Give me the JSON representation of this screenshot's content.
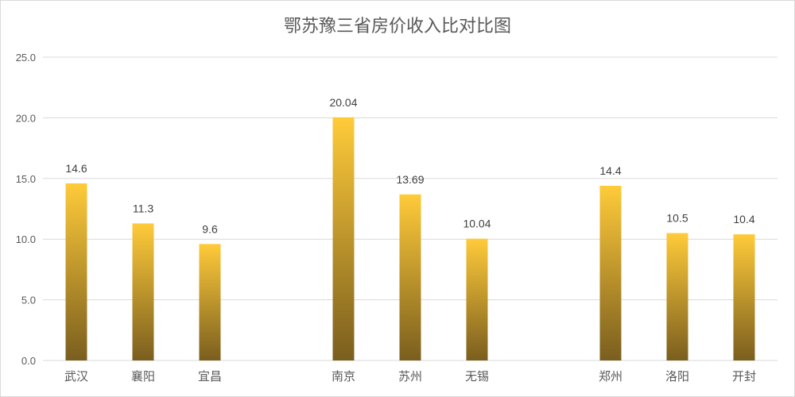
{
  "chart_data": {
    "type": "bar",
    "title": "鄂苏豫三省房价收入比对比图",
    "categories": [
      "武汉",
      "襄阳",
      "宜昌",
      "",
      "南京",
      "苏州",
      "无锡",
      "",
      "郑州",
      "洛阳",
      "开封"
    ],
    "values": [
      14.6,
      11.3,
      9.6,
      null,
      20.04,
      13.69,
      10.04,
      null,
      14.4,
      10.5,
      10.4
    ],
    "data_labels": [
      "14.6",
      "11.3",
      "9.6",
      "",
      "20.04",
      "13.69",
      "10.04",
      "",
      "14.4",
      "10.5",
      "10.4"
    ],
    "ylim": [
      0,
      25
    ],
    "yticks": [
      "0.0",
      "5.0",
      "10.0",
      "15.0",
      "20.0",
      "25.0"
    ],
    "xlabel": "",
    "ylabel": "",
    "grid": true,
    "legend": "none",
    "colors": {
      "bar_top": "#FFCB3A",
      "bar_bottom": "#7A5E1E",
      "grid": "#d9d9d9",
      "text": "#595959"
    }
  }
}
